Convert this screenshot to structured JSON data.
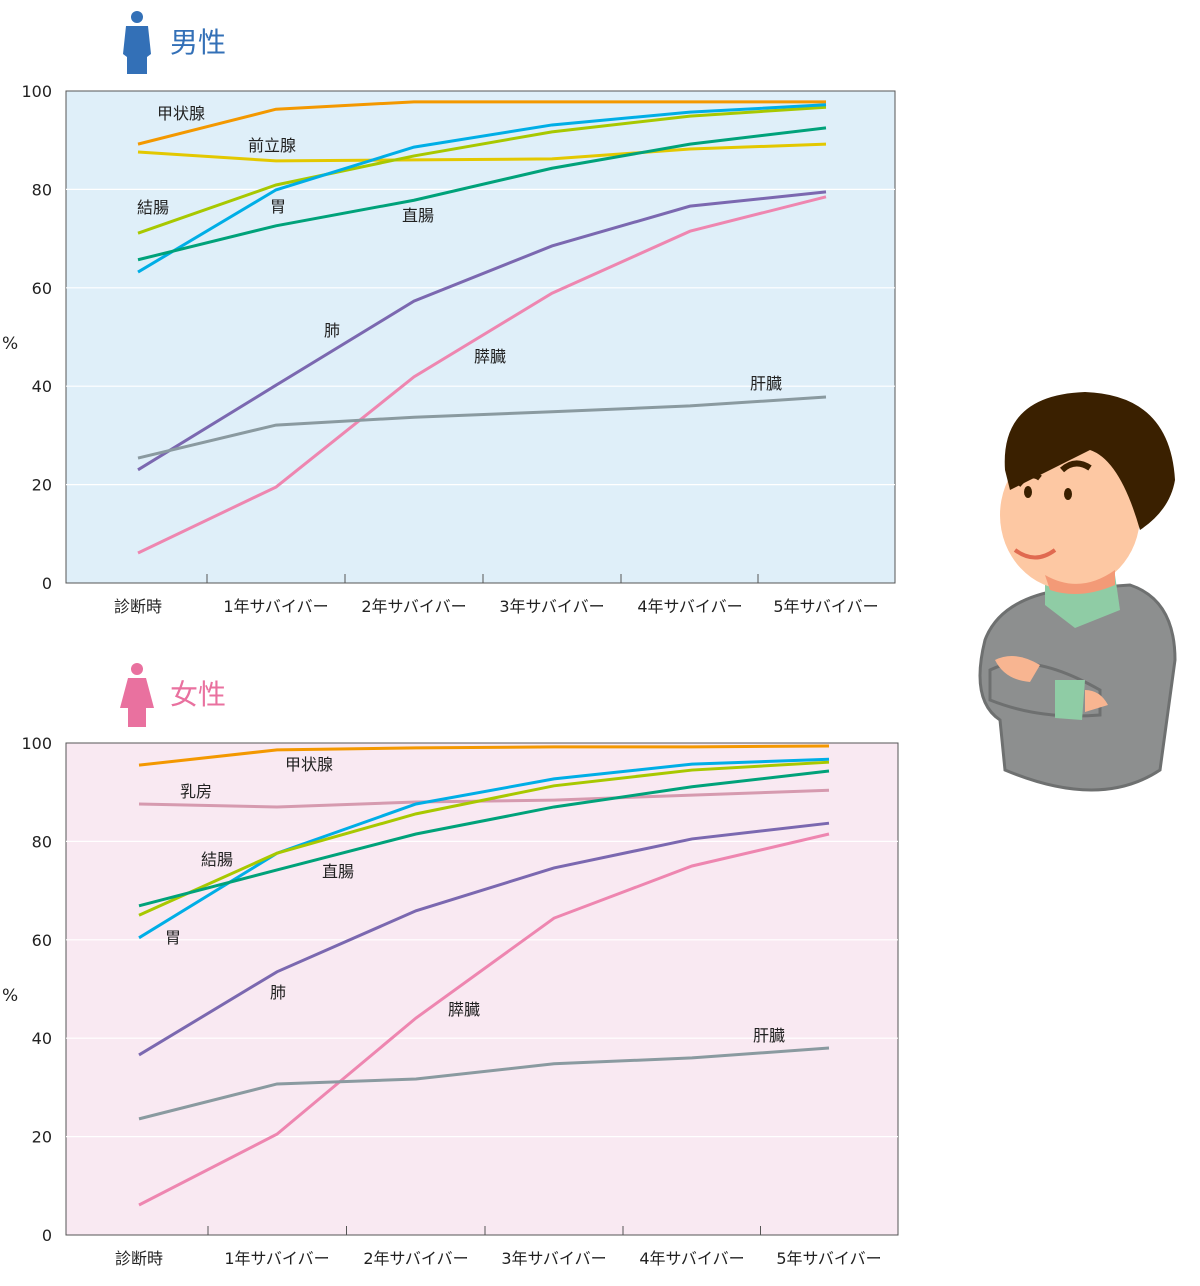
{
  "chart_data": [
    {
      "type": "line",
      "title": "男性",
      "title_color": "#3370b7",
      "icon": "male-person-icon",
      "bg_color": "#dfeff9",
      "ylabel": "%",
      "ylim": [
        0,
        100
      ],
      "yticks": [
        0,
        20,
        40,
        60,
        80,
        100
      ],
      "grid": true,
      "categories": [
        "診断時",
        "1年サバイバー",
        "2年サバイバー",
        "3年サバイバー",
        "4年サバイバー",
        "5年サバイバー"
      ],
      "series": [
        {
          "name": "甲状腺",
          "color": "#f39800",
          "values": [
            89.2,
            96.3,
            97.8,
            97.8,
            97.8,
            97.8
          ]
        },
        {
          "name": "前立腺",
          "color": "#e3c800",
          "values": [
            87.6,
            85.8,
            86.0,
            86.2,
            88.2,
            89.2
          ]
        },
        {
          "name": "結腸",
          "color": "#a8c800",
          "values": [
            71.1,
            80.9,
            86.8,
            91.7,
            94.9,
            96.7
          ]
        },
        {
          "name": "胃",
          "color": "#00aee6",
          "values": [
            63.2,
            79.9,
            88.6,
            93.1,
            95.7,
            97.2
          ]
        },
        {
          "name": "直腸",
          "color": "#00a27a",
          "values": [
            65.7,
            72.6,
            77.8,
            84.3,
            89.2,
            92.5
          ]
        },
        {
          "name": "肺",
          "color": "#7b68b0",
          "values": [
            23.0,
            40.2,
            57.3,
            68.5,
            76.6,
            79.5
          ]
        },
        {
          "name": "膵臓",
          "color": "#ee86b0",
          "values": [
            6.1,
            19.5,
            41.9,
            58.9,
            71.5,
            78.5
          ]
        },
        {
          "name": "肝臓",
          "color": "#8a9aa0",
          "values": [
            25.4,
            32.1,
            33.7,
            34.8,
            36.0,
            37.8
          ]
        }
      ]
    },
    {
      "type": "line",
      "title": "女性",
      "title_color": "#e9719f",
      "icon": "female-person-icon",
      "bg_color": "#f9e9f2",
      "ylabel": "%",
      "ylim": [
        0,
        100
      ],
      "yticks": [
        0,
        20,
        40,
        60,
        80,
        100
      ],
      "grid": true,
      "categories": [
        "診断時",
        "1年サバイバー",
        "2年サバイバー",
        "3年サバイバー",
        "4年サバイバー",
        "5年サバイバー"
      ],
      "series": [
        {
          "name": "甲状腺",
          "color": "#f39800",
          "values": [
            95.5,
            98.6,
            99.0,
            99.2,
            99.2,
            99.4
          ]
        },
        {
          "name": "乳房",
          "color": "#d69aaf",
          "values": [
            87.6,
            87.0,
            88.0,
            88.4,
            89.4,
            90.4
          ]
        },
        {
          "name": "胃",
          "color": "#00aee6",
          "values": [
            60.4,
            77.6,
            87.6,
            92.7,
            95.7,
            96.7
          ]
        },
        {
          "name": "結腸",
          "color": "#a8c800",
          "values": [
            65.0,
            77.6,
            85.6,
            91.3,
            94.5,
            96.1
          ]
        },
        {
          "name": "直腸",
          "color": "#00a27a",
          "values": [
            66.9,
            74.2,
            81.5,
            87.0,
            91.1,
            94.3
          ]
        },
        {
          "name": "肺",
          "color": "#7b68b0",
          "values": [
            36.6,
            53.5,
            65.9,
            74.6,
            80.5,
            83.7
          ]
        },
        {
          "name": "膵臓",
          "color": "#ee86b0",
          "values": [
            6.1,
            20.5,
            44.1,
            64.4,
            75.0,
            81.5
          ]
        },
        {
          "name": "肝臓",
          "color": "#8a9aa0",
          "values": [
            23.6,
            30.7,
            31.7,
            34.8,
            36.0,
            38.0
          ]
        }
      ]
    }
  ],
  "illustration": "older-man-arms-crossed"
}
